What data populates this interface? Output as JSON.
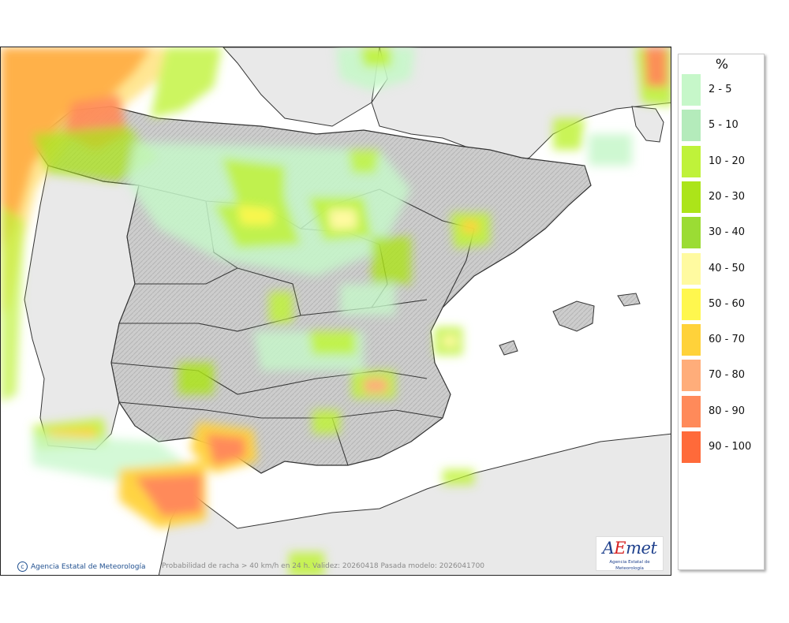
{
  "map": {
    "caption": "Probabilidad de racha > 40 km/h en 24 h. Validez: 20260418 Pasada modelo: 2026041700",
    "credit": "Agencia Estatal de Meteorología",
    "credit_icon": "copyright-icon",
    "logo_text_a": "A",
    "logo_text_e": "E",
    "logo_text_rest": "met",
    "logo_subtitle": "Agencia Estatal de Meteorología",
    "colors": {
      "sea": "#ffffff",
      "land_outside": "#e9e9e9",
      "relief": "#c8c8c8",
      "border": "#3a3a3a"
    }
  },
  "legend": {
    "unit": "%",
    "classes": [
      {
        "label": "2 - 5",
        "color": "#c6f7c9"
      },
      {
        "label": "5 - 10",
        "color": "#b4ebbb"
      },
      {
        "label": "10 - 20",
        "color": "#bff23a"
      },
      {
        "label": "20 - 30",
        "color": "#ace419"
      },
      {
        "label": "30 - 40",
        "color": "#9bdc34"
      },
      {
        "label": "40 - 50",
        "color": "#fffaa0"
      },
      {
        "label": "50 - 60",
        "color": "#fff74e"
      },
      {
        "label": "60 - 70",
        "color": "#ffd23a"
      },
      {
        "label": "70 - 80",
        "color": "#ffad7a"
      },
      {
        "label": "80 - 90",
        "color": "#ff8a5a"
      },
      {
        "label": "90 - 100",
        "color": "#ff6a3a"
      }
    ]
  }
}
